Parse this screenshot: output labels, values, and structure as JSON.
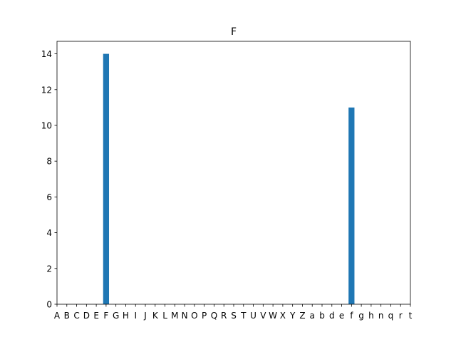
{
  "chart_data": {
    "type": "bar",
    "title": "F",
    "xlabel": "",
    "ylabel": "",
    "categories": [
      "A",
      "B",
      "C",
      "D",
      "E",
      "F",
      "G",
      "H",
      "I",
      "J",
      "K",
      "L",
      "M",
      "N",
      "O",
      "P",
      "Q",
      "R",
      "S",
      "T",
      "U",
      "V",
      "W",
      "X",
      "Y",
      "Z",
      "a",
      "b",
      "d",
      "e",
      "f",
      "g",
      "h",
      "n",
      "q",
      "r",
      "t"
    ],
    "values": [
      0,
      0,
      0,
      0,
      0,
      14,
      0,
      0,
      0,
      0,
      0,
      0,
      0,
      0,
      0,
      0,
      0,
      0,
      0,
      0,
      0,
      0,
      0,
      0,
      0,
      0,
      0,
      0,
      0,
      0,
      11,
      0,
      0,
      0,
      0,
      0,
      0
    ],
    "ylim": [
      0,
      14.7
    ],
    "yticks": [
      0,
      2,
      4,
      6,
      8,
      10,
      12,
      14
    ],
    "grid": false,
    "bar_color": "#1f77b4"
  }
}
